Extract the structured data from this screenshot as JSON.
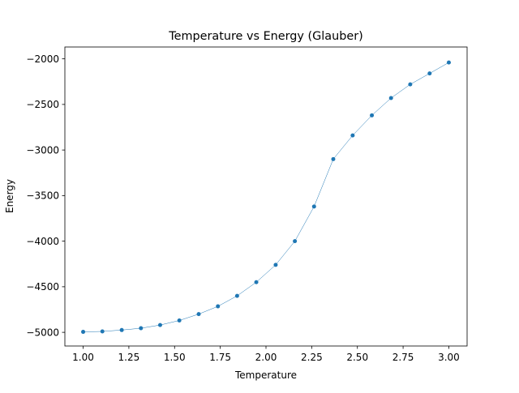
{
  "chart_data": {
    "type": "line",
    "title": "Temperature vs Energy (Glauber)",
    "xlabel": "Temperature",
    "ylabel": "Energy",
    "xlim": [
      0.9,
      3.1
    ],
    "ylim": [
      -5150,
      -1870
    ],
    "xticks": [
      1.0,
      1.25,
      1.5,
      1.75,
      2.0,
      2.25,
      2.5,
      2.75,
      3.0
    ],
    "xtick_labels": [
      "1.00",
      "1.25",
      "1.50",
      "1.75",
      "2.00",
      "2.25",
      "2.50",
      "2.75",
      "3.00"
    ],
    "yticks": [
      -5000,
      -4500,
      -4000,
      -3500,
      -3000,
      -2500,
      -2000
    ],
    "ytick_labels": [
      "−5000",
      "−4500",
      "−4000",
      "−3500",
      "−3000",
      "−2500",
      "−2000"
    ],
    "grid": false,
    "legend": "none",
    "series": [
      {
        "color": "#1f77b4",
        "x": [
          1.0,
          1.105,
          1.211,
          1.316,
          1.421,
          1.526,
          1.632,
          1.737,
          1.842,
          1.947,
          2.053,
          2.158,
          2.263,
          2.368,
          2.474,
          2.579,
          2.684,
          2.789,
          2.895,
          3.0
        ],
        "y": [
          -4995,
          -4990,
          -4975,
          -4955,
          -4920,
          -4870,
          -4800,
          -4715,
          -4600,
          -4450,
          -4260,
          -4000,
          -3620,
          -3100,
          -2840,
          -2620,
          -2430,
          -2280,
          -2160,
          -2040
        ]
      }
    ]
  }
}
